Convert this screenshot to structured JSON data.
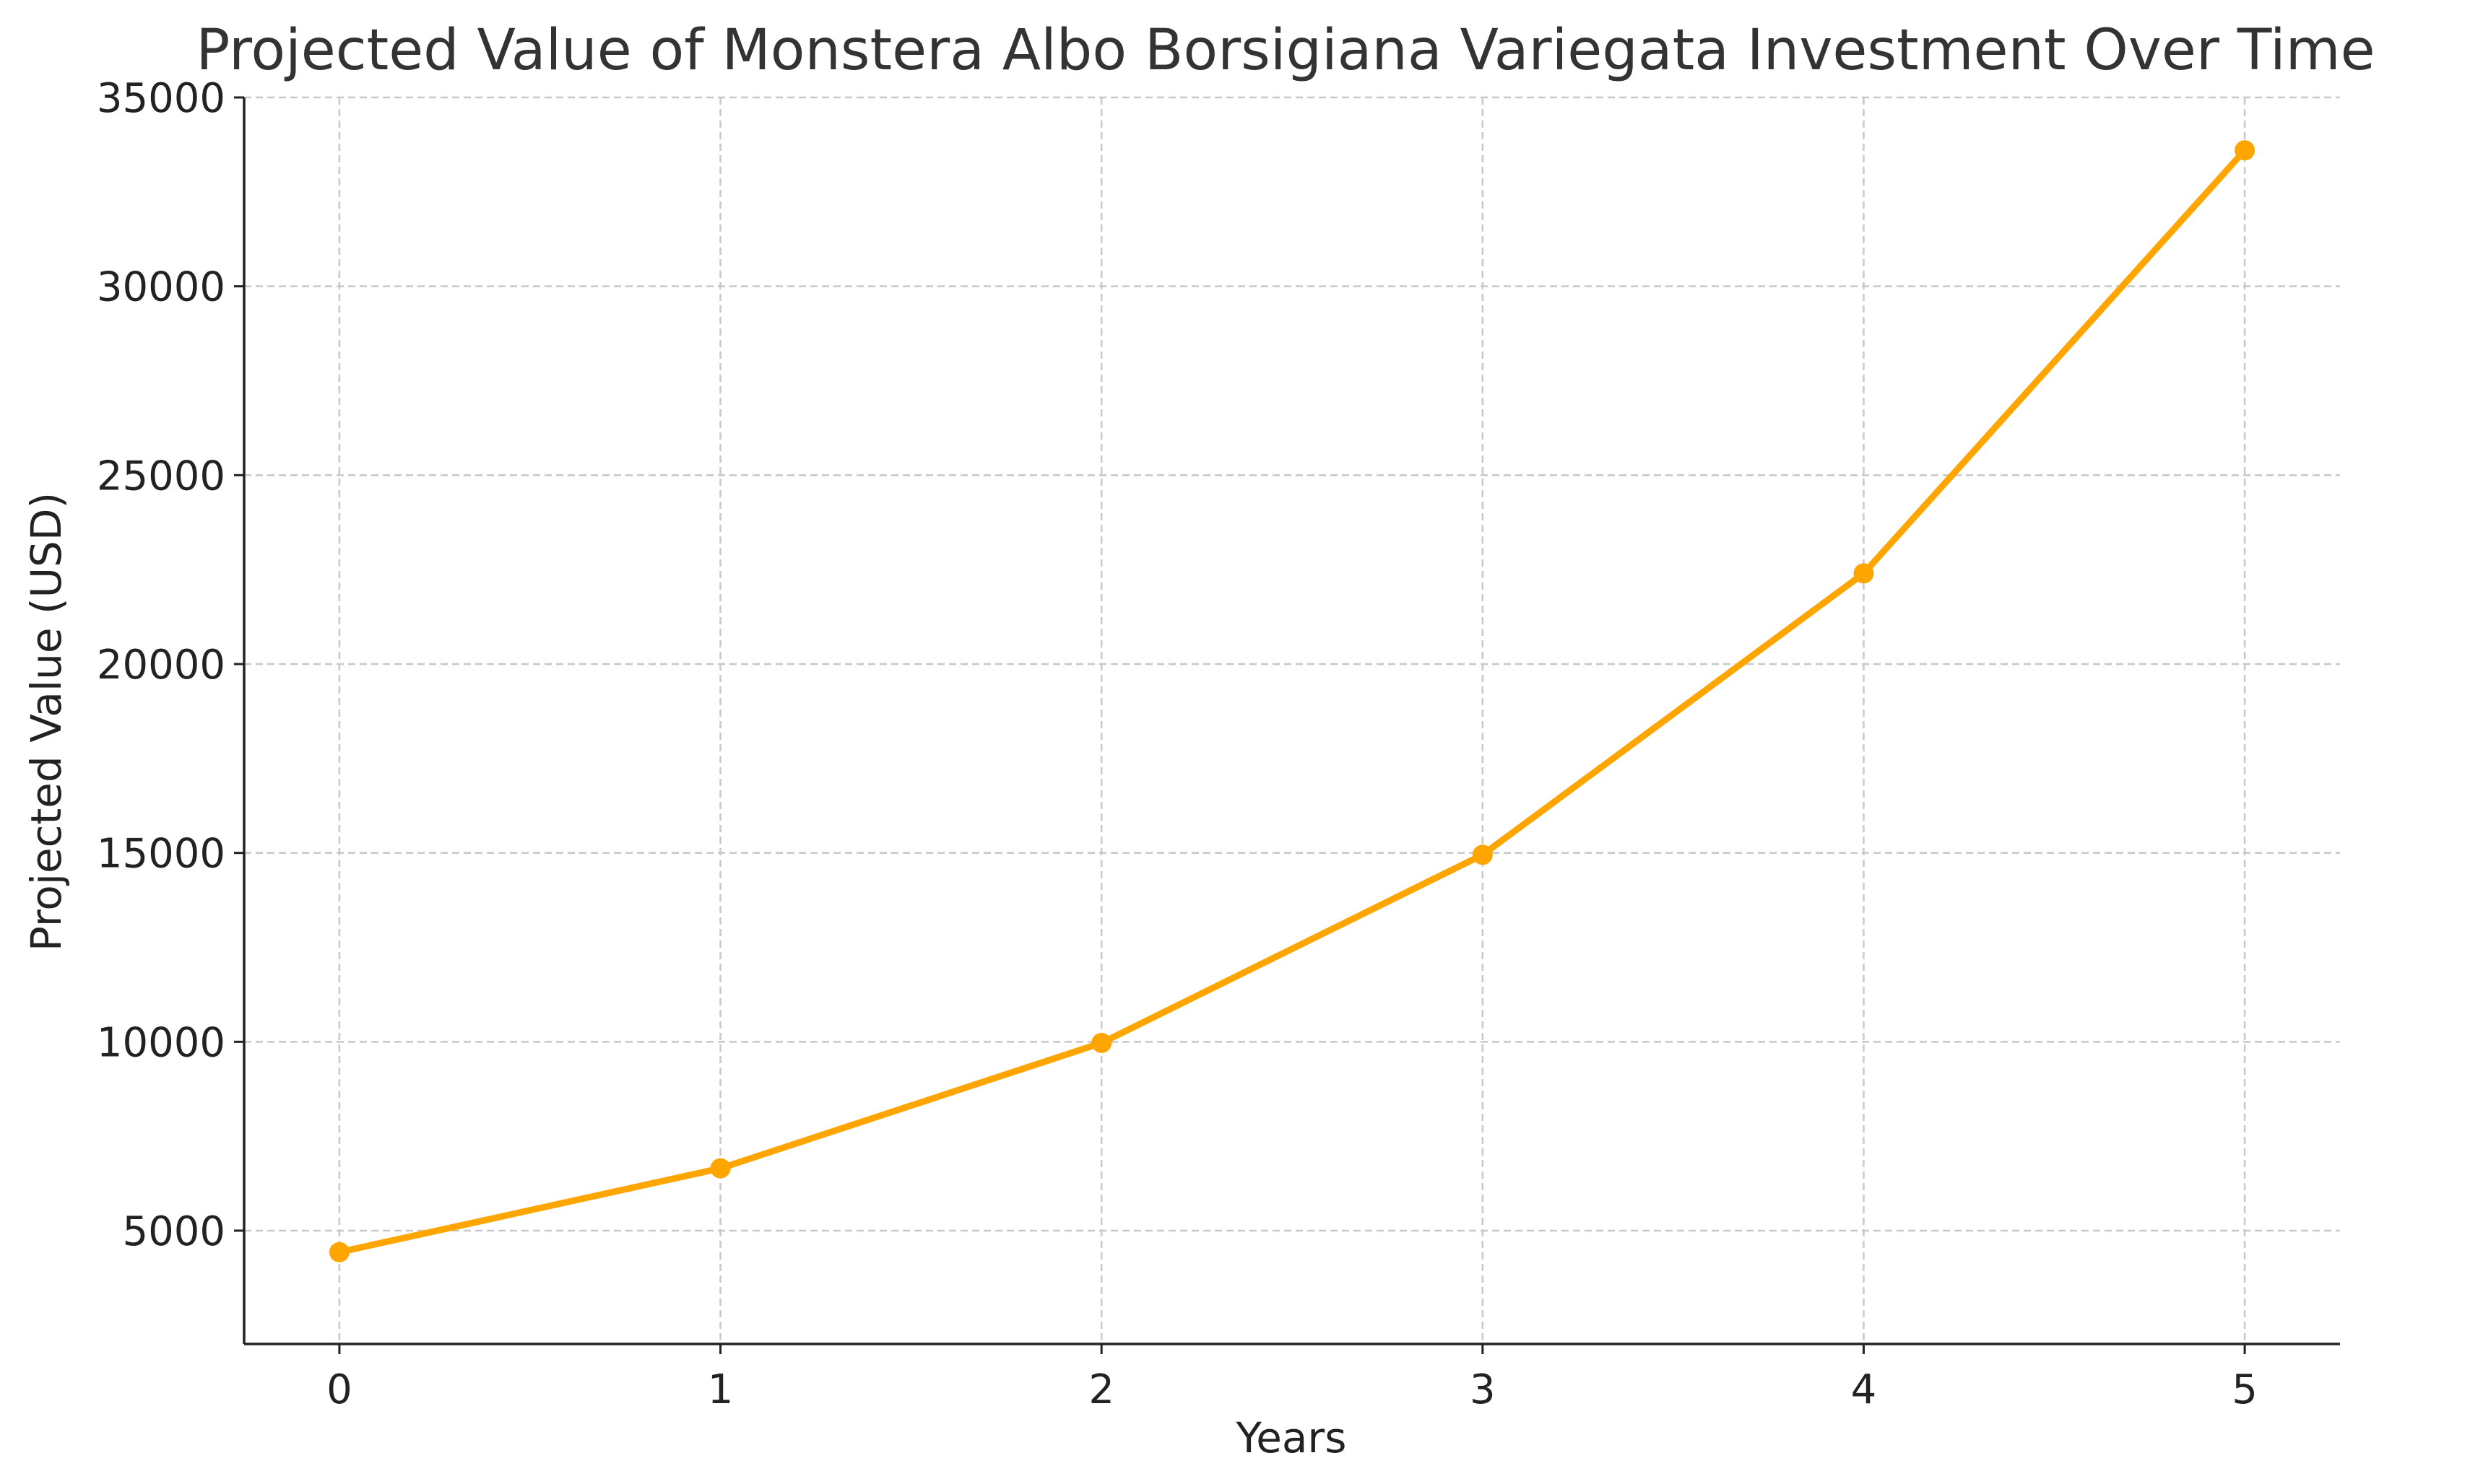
{
  "chart_data": {
    "type": "line",
    "title": "Projected Value of Monstera Albo Borsigiana Variegata Investment Over Time",
    "xlabel": "Years",
    "ylabel": "Projected Value (USD)",
    "x": [
      0,
      1,
      2,
      3,
      4,
      5
    ],
    "series": [
      {
        "values": [
          4430,
          6650,
          9970,
          14950,
          22400,
          33600
        ]
      }
    ],
    "xlim": [
      -0.25,
      5.25
    ],
    "ylim": [
      2000,
      35000
    ],
    "xticks": [
      0,
      1,
      2,
      3,
      4,
      5
    ],
    "yticks": [
      5000,
      10000,
      15000,
      20000,
      25000,
      30000,
      35000
    ],
    "xtick_labels": [
      "0",
      "1",
      "2",
      "3",
      "4",
      "5"
    ],
    "ytick_labels": [
      "5000",
      "10000",
      "15000",
      "20000",
      "25000",
      "30000",
      "35000"
    ],
    "grid": true,
    "grid_style": "dashed",
    "line_color": "#FFA500",
    "marker": "circle"
  }
}
